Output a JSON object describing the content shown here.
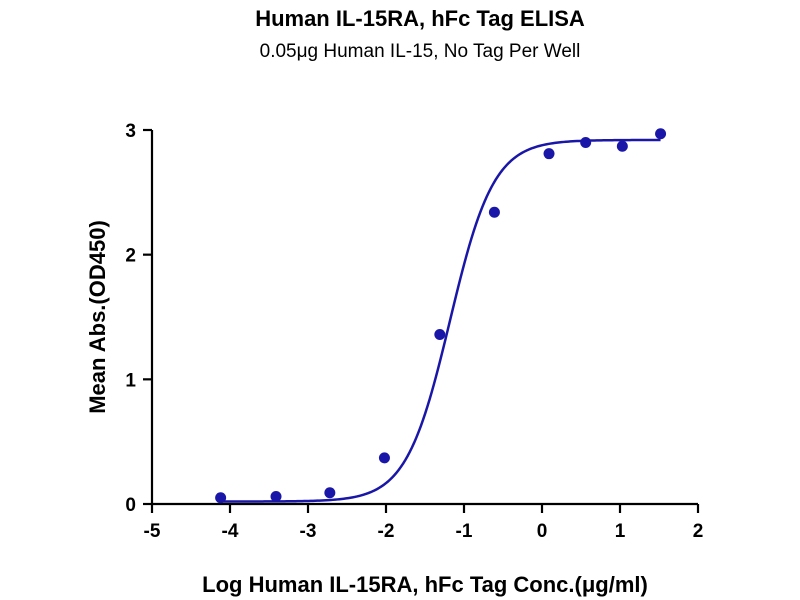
{
  "chart_data": {
    "type": "scatter",
    "title": "Human IL-15RA, hFc Tag ELISA",
    "subtitle": "0.05μg Human IL-15, No Tag Per Well",
    "xlabel": "Log Human IL-15RA, hFc Tag Conc.(μg/ml)",
    "ylabel": "Mean Abs.(OD450)",
    "xlim": [
      -5,
      2
    ],
    "ylim": [
      0,
      3
    ],
    "x_ticks": [
      -5,
      -4,
      -3,
      -2,
      -1,
      0,
      1,
      2
    ],
    "y_ticks": [
      0,
      1,
      2,
      3
    ],
    "x_tick_labels": [
      "-5",
      "-4",
      "-3",
      "-2",
      "-1",
      "0",
      "1",
      "2"
    ],
    "y_tick_labels": [
      "0",
      "1",
      "2",
      "3"
    ],
    "grid": false,
    "legend": "none",
    "series": [
      {
        "x": [
          -4.12,
          -3.41,
          -2.72,
          -2.02,
          -1.31,
          -0.61,
          0.09,
          0.56,
          1.03,
          1.52
        ],
        "y": [
          0.05,
          0.06,
          0.09,
          0.37,
          1.36,
          2.34,
          2.81,
          2.9,
          2.87,
          2.97
        ],
        "fit": "4PL",
        "fit_params": {
          "bottom": 0.02,
          "top": 2.92,
          "logEC50": -1.18,
          "hill": 1.55
        },
        "color": "#1a17a8"
      }
    ]
  }
}
